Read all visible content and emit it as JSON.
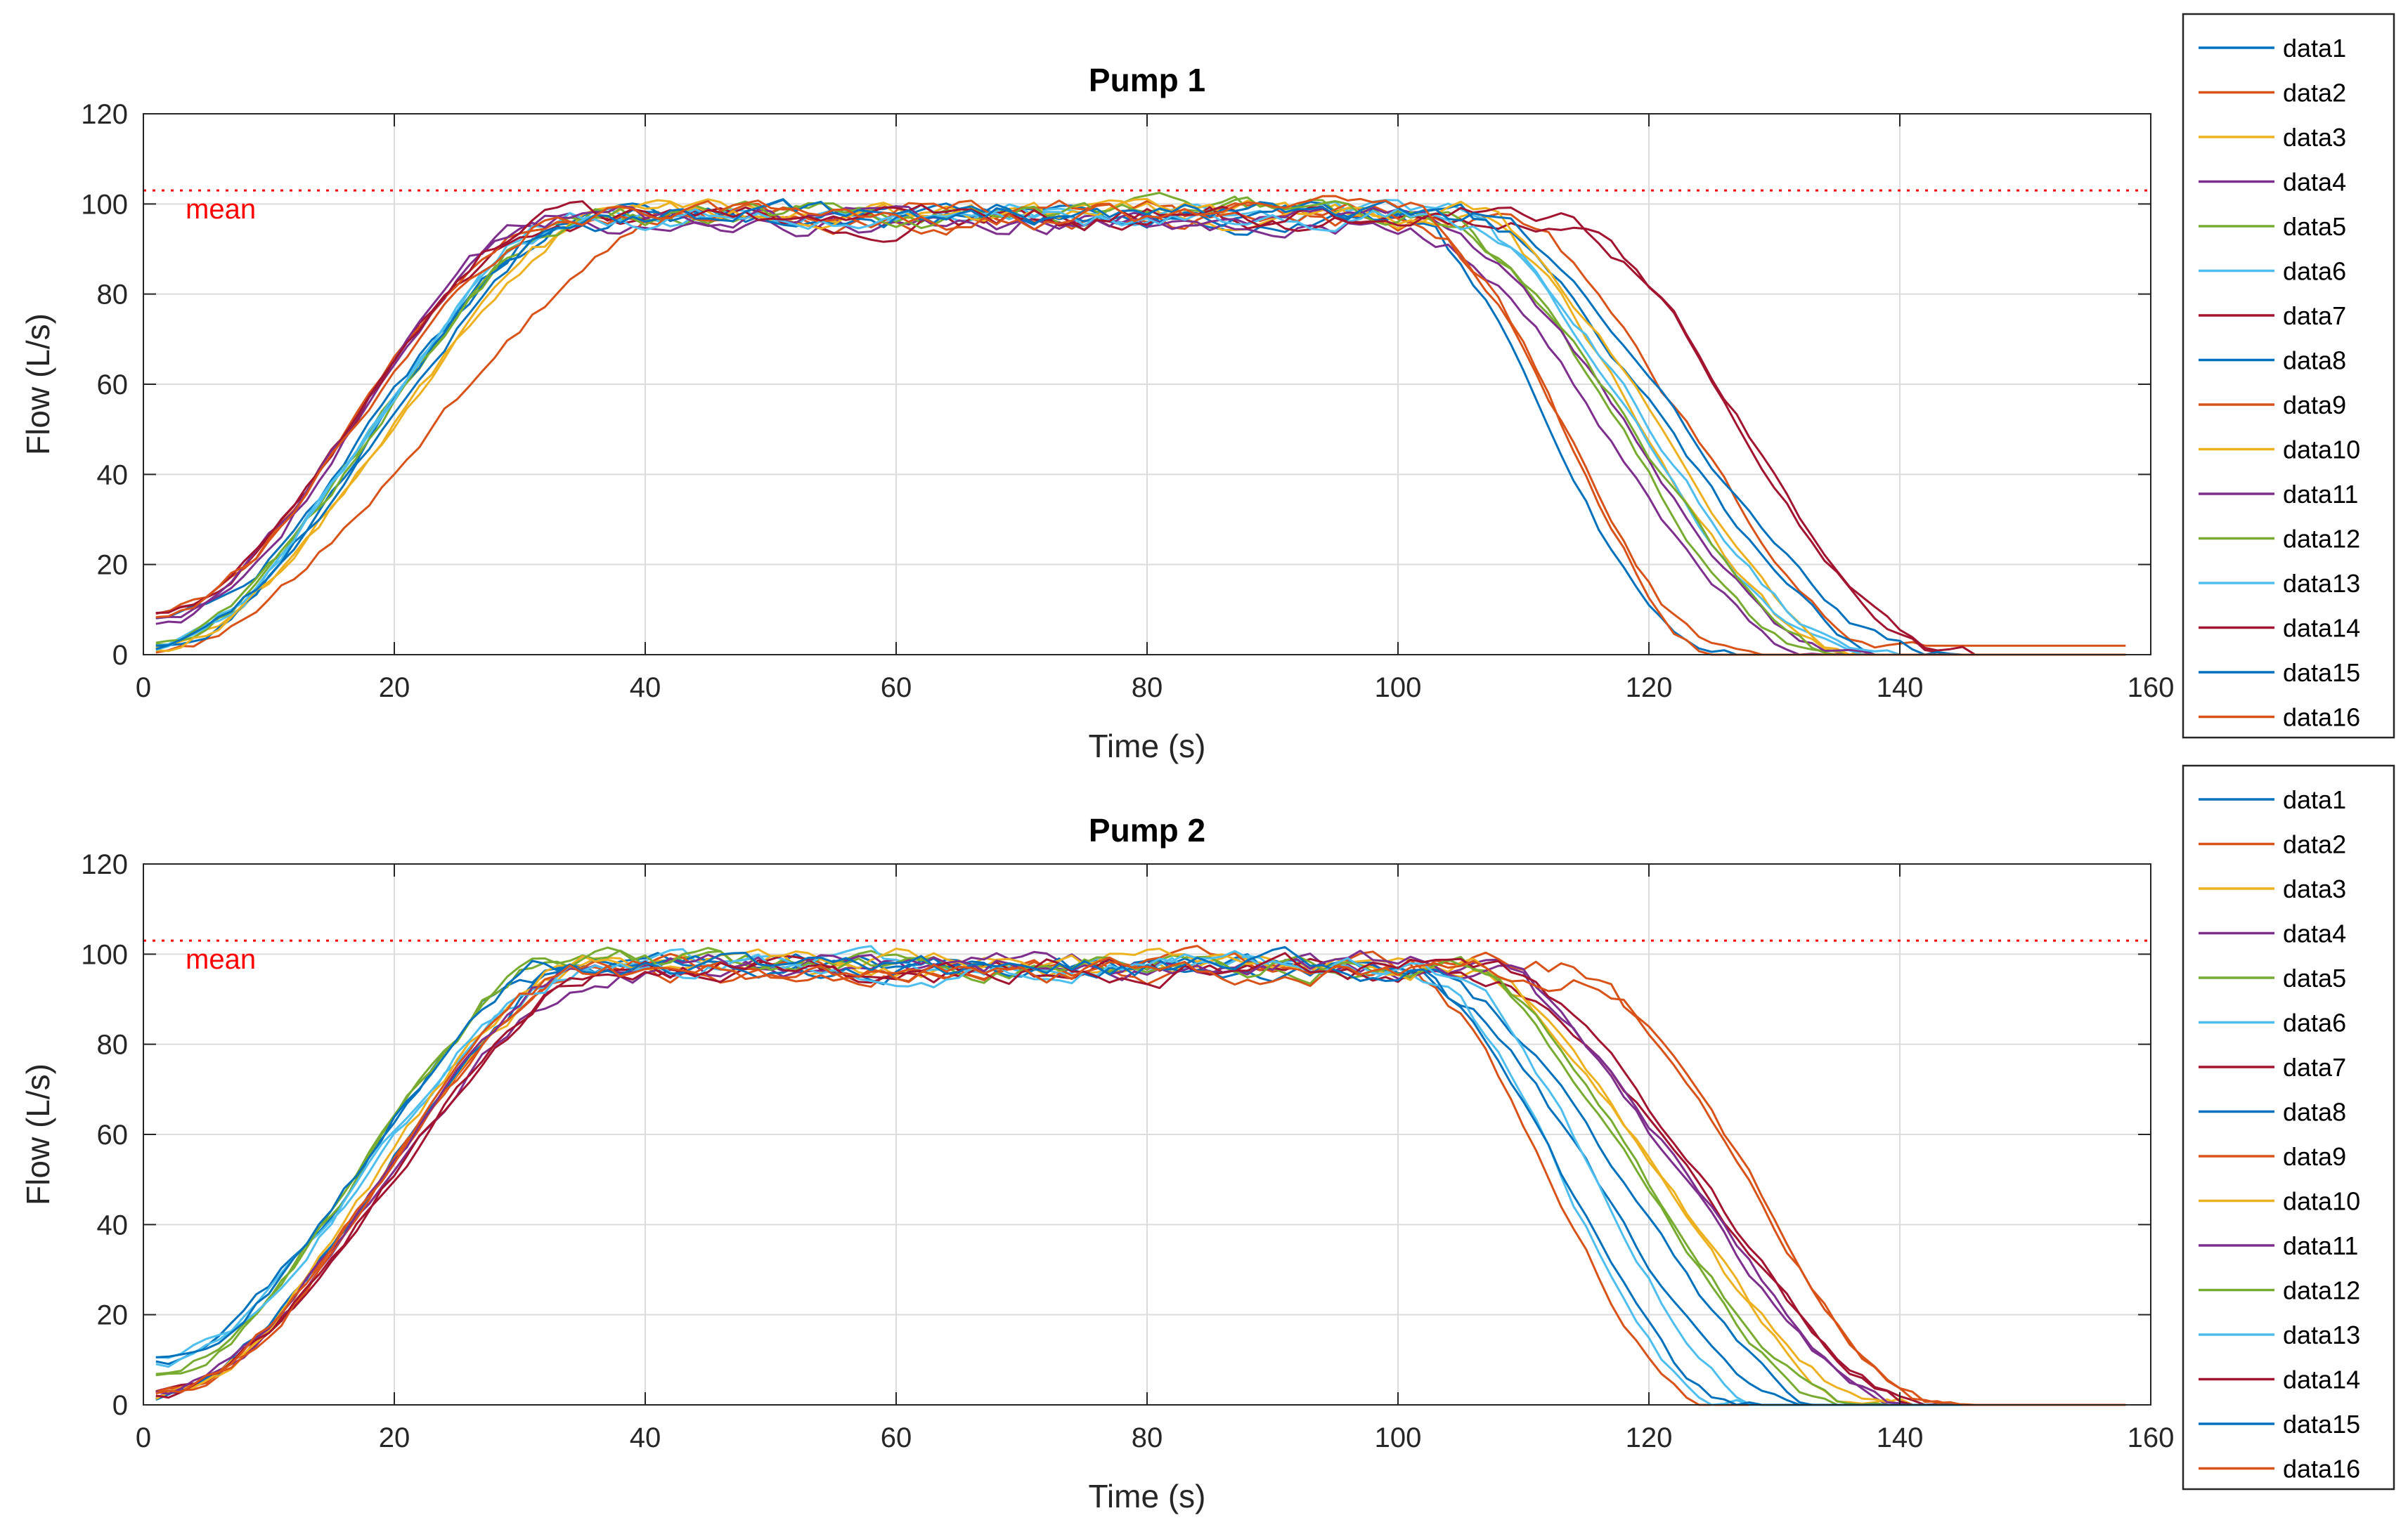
{
  "mean_value": 103,
  "mean_label": "mean",
  "mean_color": "#ff0000",
  "legend_labels": [
    "data1",
    "data2",
    "data3",
    "data4",
    "data5",
    "data6",
    "data7",
    "data8",
    "data9",
    "data10",
    "data11",
    "data12",
    "data13",
    "data14",
    "data15",
    "data16"
  ],
  "series_colors": [
    "#0072bd",
    "#d95319",
    "#edb120",
    "#7e2f8e",
    "#77ac30",
    "#4dbeee",
    "#a2142f",
    "#0072bd",
    "#d95319",
    "#edb120",
    "#7e2f8e",
    "#77ac30",
    "#4dbeee",
    "#a2142f",
    "#0072bd",
    "#d95319"
  ],
  "chart_data": [
    {
      "type": "line",
      "title": "Pump 1",
      "xlabel": "Time (s)",
      "ylabel": "Flow (L/s)",
      "xlim": [
        0,
        160
      ],
      "ylim": [
        0,
        120
      ],
      "xticks": [
        0,
        20,
        40,
        60,
        80,
        100,
        120,
        140,
        160
      ],
      "yticks": [
        0,
        20,
        40,
        60,
        80,
        100,
        120
      ],
      "grid": true,
      "legend_position": "outside-right",
      "mean_line": 103,
      "series": [
        {
          "name": "data1",
          "start": 7,
          "ramp_up_end": 36,
          "plateau": 97,
          "ramp_down_start": 100,
          "ramp_down_end": 125,
          "tail": 0
        },
        {
          "name": "data2",
          "start": 1,
          "ramp_up_end": 44,
          "plateau": 96,
          "ramp_down_start": 107,
          "ramp_down_end": 140,
          "tail": 2
        },
        {
          "name": "data3",
          "start": 2,
          "ramp_up_end": 38,
          "plateau": 97,
          "ramp_down_start": 104,
          "ramp_down_end": 136,
          "tail": 0
        },
        {
          "name": "data4",
          "start": 7,
          "ramp_up_end": 33,
          "plateau": 96,
          "ramp_down_start": 100,
          "ramp_down_end": 134,
          "tail": 0
        },
        {
          "name": "data5",
          "start": 2,
          "ramp_up_end": 36,
          "plateau": 98,
          "ramp_down_start": 102,
          "ramp_down_end": 134,
          "tail": 0
        },
        {
          "name": "data6",
          "start": 2,
          "ramp_up_end": 35,
          "plateau": 98,
          "ramp_down_start": 103,
          "ramp_down_end": 136,
          "tail": 0
        },
        {
          "name": "data7",
          "start": 9,
          "ramp_up_end": 33,
          "plateau": 97,
          "ramp_down_start": 112,
          "ramp_down_end": 144,
          "tail": 0
        },
        {
          "name": "data8",
          "start": 2,
          "ramp_up_end": 36,
          "plateau": 97,
          "ramp_down_start": 104,
          "ramp_down_end": 140,
          "tail": 0
        },
        {
          "name": "data9",
          "start": 9,
          "ramp_up_end": 33,
          "plateau": 98,
          "ramp_down_start": 100,
          "ramp_down_end": 127,
          "tail": 0
        },
        {
          "name": "data10",
          "start": 2,
          "ramp_up_end": 38,
          "plateau": 98,
          "ramp_down_start": 104,
          "ramp_down_end": 138,
          "tail": 0
        },
        {
          "name": "data11",
          "start": 8,
          "ramp_up_end": 33,
          "plateau": 97,
          "ramp_down_start": 101,
          "ramp_down_end": 136,
          "tail": 0
        },
        {
          "name": "data12",
          "start": 2,
          "ramp_up_end": 36,
          "plateau": 98,
          "ramp_down_start": 102,
          "ramp_down_end": 136,
          "tail": 0
        },
        {
          "name": "data13",
          "start": 2,
          "ramp_up_end": 35,
          "plateau": 97,
          "ramp_down_start": 103,
          "ramp_down_end": 138,
          "tail": 0
        },
        {
          "name": "data14",
          "start": 9,
          "ramp_up_end": 34,
          "plateau": 97,
          "ramp_down_start": 112,
          "ramp_down_end": 144,
          "tail": 0
        },
        {
          "name": "data15",
          "start": 2,
          "ramp_up_end": 37,
          "plateau": 98,
          "ramp_down_start": 104,
          "ramp_down_end": 143,
          "tail": 0
        },
        {
          "name": "data16",
          "start": 9,
          "ramp_up_end": 34,
          "plateau": 97,
          "ramp_down_start": 101,
          "ramp_down_end": 126,
          "tail": 0
        }
      ]
    },
    {
      "type": "line",
      "title": "Pump 2",
      "xlabel": "Time (s)",
      "ylabel": "Flow (L/s)",
      "xlim": [
        0,
        160
      ],
      "ylim": [
        0,
        120
      ],
      "xticks": [
        0,
        20,
        40,
        60,
        80,
        100,
        120,
        140,
        160
      ],
      "yticks": [
        0,
        20,
        40,
        60,
        80,
        100,
        120
      ],
      "grid": true,
      "legend_position": "outside-right",
      "mean_line": 103,
      "series": [
        {
          "name": "data1",
          "start": 10,
          "ramp_up_end": 34,
          "plateau": 97,
          "ramp_down_start": 100,
          "ramp_down_end": 132,
          "tail": 0
        },
        {
          "name": "data2",
          "start": 2,
          "ramp_up_end": 36,
          "plateau": 96,
          "ramp_down_start": 100,
          "ramp_down_end": 125,
          "tail": 0
        },
        {
          "name": "data3",
          "start": 2,
          "ramp_up_end": 36,
          "plateau": 97,
          "ramp_down_start": 105,
          "ramp_down_end": 138,
          "tail": 0
        },
        {
          "name": "data4",
          "start": 2,
          "ramp_up_end": 38,
          "plateau": 97,
          "ramp_down_start": 105,
          "ramp_down_end": 141,
          "tail": 0
        },
        {
          "name": "data5",
          "start": 7,
          "ramp_up_end": 34,
          "plateau": 98,
          "ramp_down_start": 103,
          "ramp_down_end": 136,
          "tail": 0
        },
        {
          "name": "data6",
          "start": 10,
          "ramp_up_end": 36,
          "plateau": 97,
          "ramp_down_start": 101,
          "ramp_down_end": 126,
          "tail": 0
        },
        {
          "name": "data7",
          "start": 2,
          "ramp_up_end": 38,
          "plateau": 96,
          "ramp_down_start": 105,
          "ramp_down_end": 143,
          "tail": 0
        },
        {
          "name": "data8",
          "start": 2,
          "ramp_up_end": 36,
          "plateau": 97,
          "ramp_down_start": 101,
          "ramp_down_end": 135,
          "tail": 0
        },
        {
          "name": "data9",
          "start": 2,
          "ramp_up_end": 37,
          "plateau": 97,
          "ramp_down_start": 112,
          "ramp_down_end": 144,
          "tail": 0
        },
        {
          "name": "data10",
          "start": 2,
          "ramp_up_end": 36,
          "plateau": 98,
          "ramp_down_start": 104,
          "ramp_down_end": 139,
          "tail": 0
        },
        {
          "name": "data11",
          "start": 2,
          "ramp_up_end": 37,
          "plateau": 98,
          "ramp_down_start": 105,
          "ramp_down_end": 142,
          "tail": 0
        },
        {
          "name": "data12",
          "start": 7,
          "ramp_up_end": 34,
          "plateau": 98,
          "ramp_down_start": 103,
          "ramp_down_end": 137,
          "tail": 0
        },
        {
          "name": "data13",
          "start": 10,
          "ramp_up_end": 35,
          "plateau": 97,
          "ramp_down_start": 102,
          "ramp_down_end": 130,
          "tail": 0
        },
        {
          "name": "data14",
          "start": 2,
          "ramp_up_end": 38,
          "plateau": 97,
          "ramp_down_start": 106,
          "ramp_down_end": 143,
          "tail": 0
        },
        {
          "name": "data15",
          "start": 10,
          "ramp_up_end": 34,
          "plateau": 97,
          "ramp_down_start": 100,
          "ramp_down_end": 127,
          "tail": 0
        },
        {
          "name": "data16",
          "start": 2,
          "ramp_up_end": 36,
          "plateau": 96,
          "ramp_down_start": 113,
          "ramp_down_end": 144,
          "tail": 0
        }
      ]
    }
  ]
}
